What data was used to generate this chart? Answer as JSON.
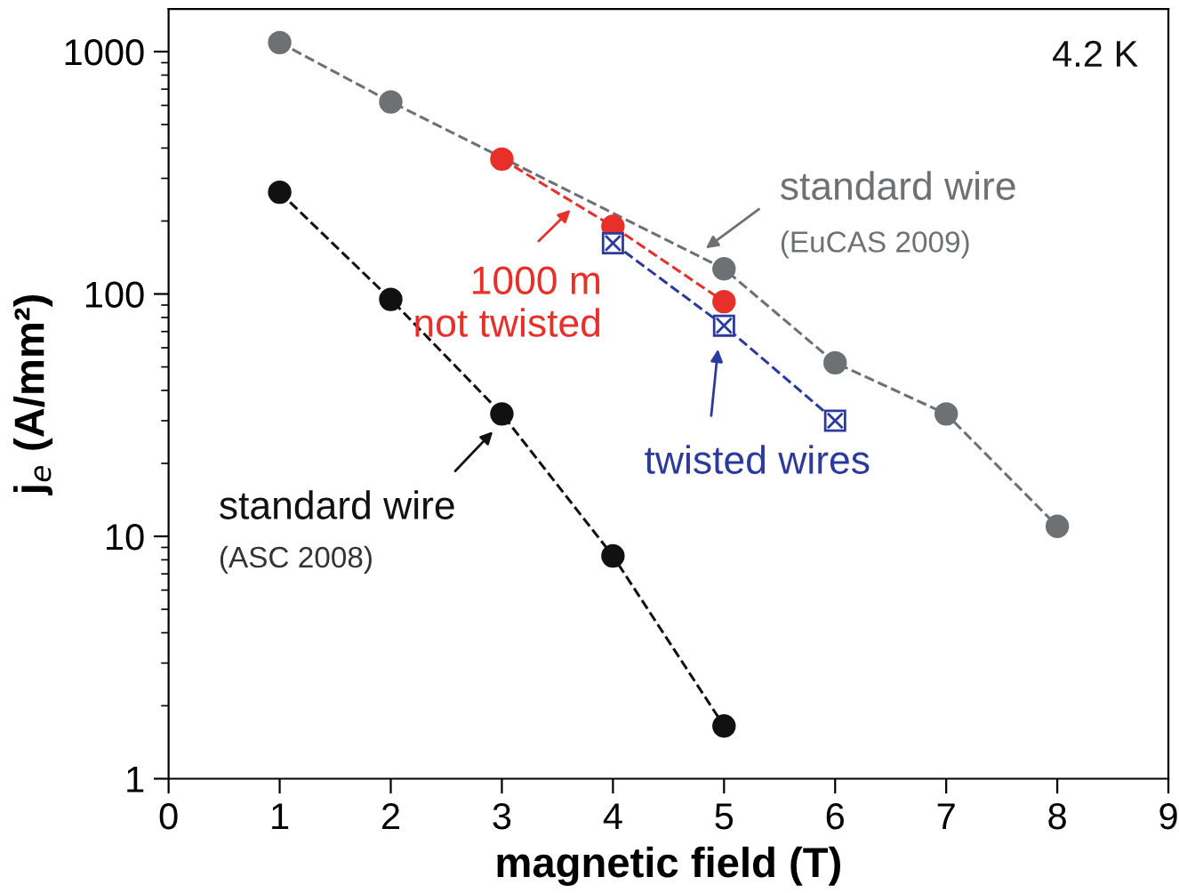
{
  "chart_data": {
    "type": "line",
    "xlabel": "magnetic field (T)",
    "ylabel": "j$_{e}$ (A/mm²)",
    "log": "y",
    "xlim": [
      0,
      9
    ],
    "xticks": [
      0,
      1,
      2,
      3,
      4,
      5,
      6,
      7,
      8,
      9
    ],
    "ylim": [
      1,
      1500
    ],
    "yticks": [
      1,
      10,
      100,
      1000
    ],
    "grid": false,
    "legend": "center",
    "line_style": "dashed",
    "series": [
      {
        "name": "standard wire",
        "color": "#6e7173",
        "marker": "circle",
        "x": [
          1,
          2,
          3,
          4,
          5,
          6,
          7,
          8
        ],
        "values": [
          1090,
          620,
          null,
          null,
          127,
          52,
          32,
          11
        ]
      },
      {
        "name": "standard wire",
        "color": "#111111",
        "marker": "circle",
        "x": [
          1,
          2,
          3,
          4,
          5
        ],
        "values": [
          263,
          95,
          32,
          8.3,
          1.65
        ]
      },
      {
        "name": "1000 m\nnot twisted",
        "color": "#e8302a",
        "marker": "circle",
        "x": [
          3,
          4,
          5
        ],
        "values": [
          360,
          190,
          93
        ]
      },
      {
        "name": "twisted wires",
        "color": "#2b3a9c",
        "marker": "square",
        "x": [
          4,
          5,
          6
        ],
        "values": [
          162,
          74,
          30
        ]
      }
    ],
    "annotations": [
      "4.2 K",
      "(EuCAS 2009)",
      "(ASC 2008)"
    ]
  }
}
